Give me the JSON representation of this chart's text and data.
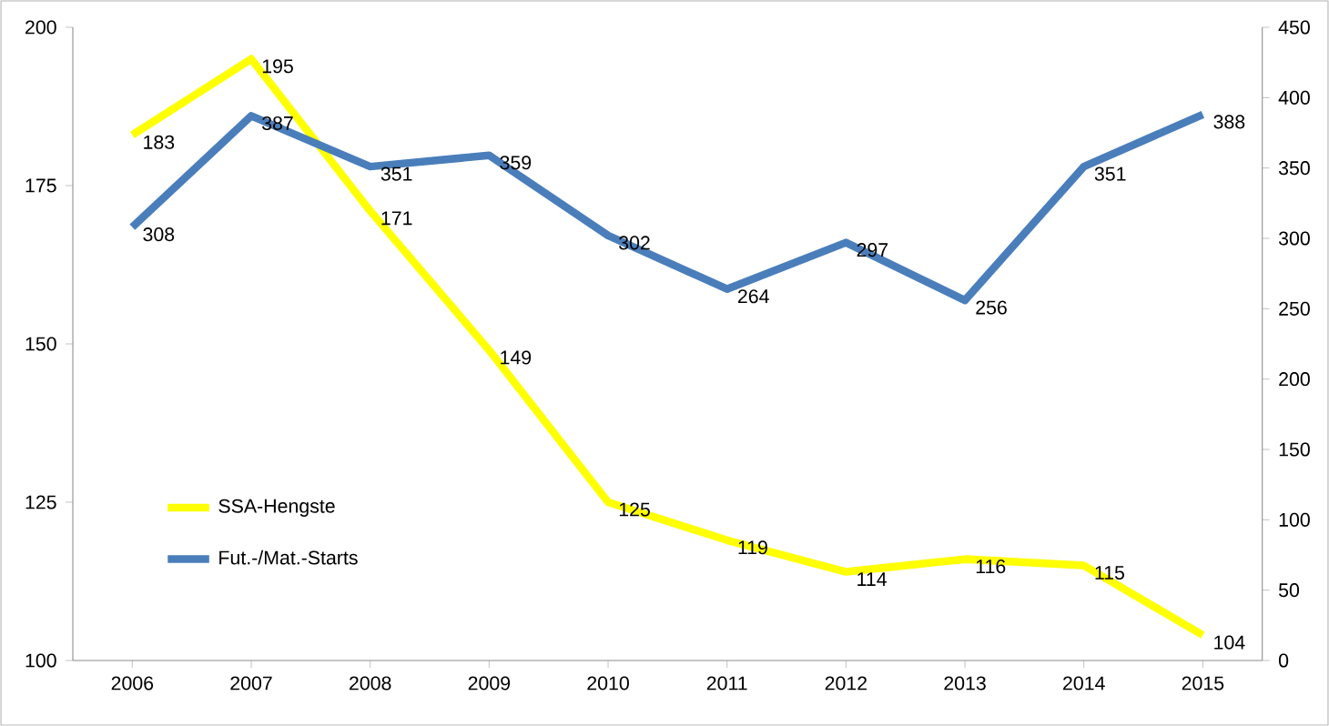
{
  "chart_data": {
    "type": "line",
    "categories": [
      "2006",
      "2007",
      "2008",
      "2009",
      "2010",
      "2011",
      "2012",
      "2013",
      "2014",
      "2015"
    ],
    "series": [
      {
        "name": "SSA-Hengste",
        "color": "#ffff00",
        "values": [
          183,
          195,
          171,
          149,
          125,
          119,
          114,
          116,
          115,
          104
        ]
      },
      {
        "name": "Fut.-/Mat.-Starts",
        "color": "#4a7ebb",
        "axis": "y2",
        "values": [
          308,
          387,
          351,
          359,
          302,
          264,
          297,
          256,
          351,
          388
        ]
      }
    ],
    "ylim": [
      100,
      200
    ],
    "yticks": [
      100,
      125,
      150,
      175,
      200
    ],
    "y2lim": [
      0,
      450
    ],
    "y2ticks": [
      0,
      50,
      100,
      150,
      200,
      250,
      300,
      350,
      400,
      450
    ],
    "data_labels": true,
    "legend": "bottom left",
    "grid": false,
    "marker": "none",
    "line_style": "solid"
  }
}
